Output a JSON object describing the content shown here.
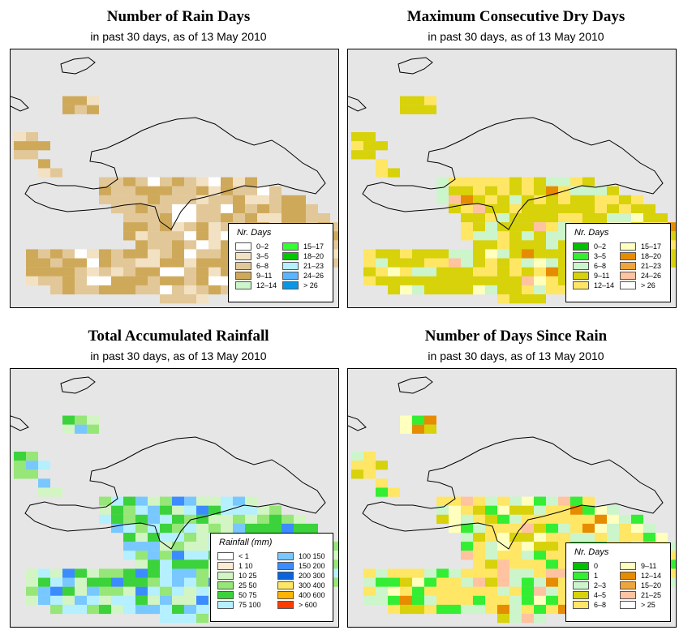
{
  "panels": [
    {
      "title": "Number of Rain Days",
      "subtitle": "in past 30 days, as of  13 May 2010",
      "legend": {
        "title": "Nr. Days",
        "items": [
          {
            "label": "0–2",
            "color": "#ffffff"
          },
          {
            "label": "3–5",
            "color": "#f2e1c2"
          },
          {
            "label": "6–8",
            "color": "#e2c898"
          },
          {
            "label": "9–11",
            "color": "#cfa95a"
          },
          {
            "label": "12–14",
            "color": "#ccf5cc"
          },
          {
            "label": "15–17",
            "color": "#33ff33"
          },
          {
            "label": "18–20",
            "color": "#00c800"
          },
          {
            "label": "21–23",
            "color": "#b4f0ff"
          },
          {
            "label": "24–26",
            "color": "#5ab4ff"
          },
          {
            "label": "> 26",
            "color": "#0a96e6"
          }
        ]
      }
    },
    {
      "title": "Maximum Consecutive Dry Days",
      "subtitle": "in past 30 days, as of  13 May 2010",
      "legend": {
        "title": "Nr. Days",
        "items": [
          {
            "label": "0–2",
            "color": "#00c000"
          },
          {
            "label": "3–5",
            "color": "#33ee33"
          },
          {
            "label": "6–8",
            "color": "#ccf5cc"
          },
          {
            "label": "9–11",
            "color": "#d7d20a"
          },
          {
            "label": "12–14",
            "color": "#ffe664"
          },
          {
            "label": "15–17",
            "color": "#ffffbe"
          },
          {
            "label": "18–20",
            "color": "#e68c00"
          },
          {
            "label": "21–23",
            "color": "#f0a53c"
          },
          {
            "label": "24–26",
            "color": "#ffc3a0"
          },
          {
            "label": "> 26",
            "color": "#ffffff"
          }
        ]
      }
    },
    {
      "title": "Total Accumulated Rainfall",
      "subtitle": "in past 30 days, as of  13 May 2010",
      "legend": {
        "title": "Rainfall (mm)",
        "items": [
          {
            "label": "< 1",
            "color": "#ffffff"
          },
          {
            "label": "1    10",
            "color": "#fdebd2"
          },
          {
            "label": "10    25",
            "color": "#d2f5c3"
          },
          {
            "label": "25    50",
            "color": "#96e678"
          },
          {
            "label": "50    75",
            "color": "#3cd23c"
          },
          {
            "label": "75   100",
            "color": "#b4f0ff"
          },
          {
            "label": "100   150",
            "color": "#78c8ff"
          },
          {
            "label": "150   200",
            "color": "#3c8cff"
          },
          {
            "label": "200   300",
            "color": "#0a64dc"
          },
          {
            "label": "300   400",
            "color": "#ffe664"
          },
          {
            "label": "400   600",
            "color": "#ffb400"
          },
          {
            "label": "> 600",
            "color": "#ff3c00"
          }
        ]
      }
    },
    {
      "title": "Number of Days Since Rain",
      "subtitle": "in past 30 days, as of  13 May 2010",
      "legend": {
        "title": "Nr. Days",
        "items": [
          {
            "label": "0",
            "color": "#00c000"
          },
          {
            "label": "1",
            "color": "#33ee33"
          },
          {
            "label": "2–3",
            "color": "#ccf5cc"
          },
          {
            "label": "4–5",
            "color": "#d7d20a"
          },
          {
            "label": "6–8",
            "color": "#ffe664"
          },
          {
            "label": "9–11",
            "color": "#ffffbe"
          },
          {
            "label": "12–14",
            "color": "#e68c00"
          },
          {
            "label": "15–20",
            "color": "#f0a53c"
          },
          {
            "label": "21–25",
            "color": "#ffc3a0"
          },
          {
            "label": "> 25",
            "color": "#ffffff"
          }
        ]
      }
    }
  ]
}
